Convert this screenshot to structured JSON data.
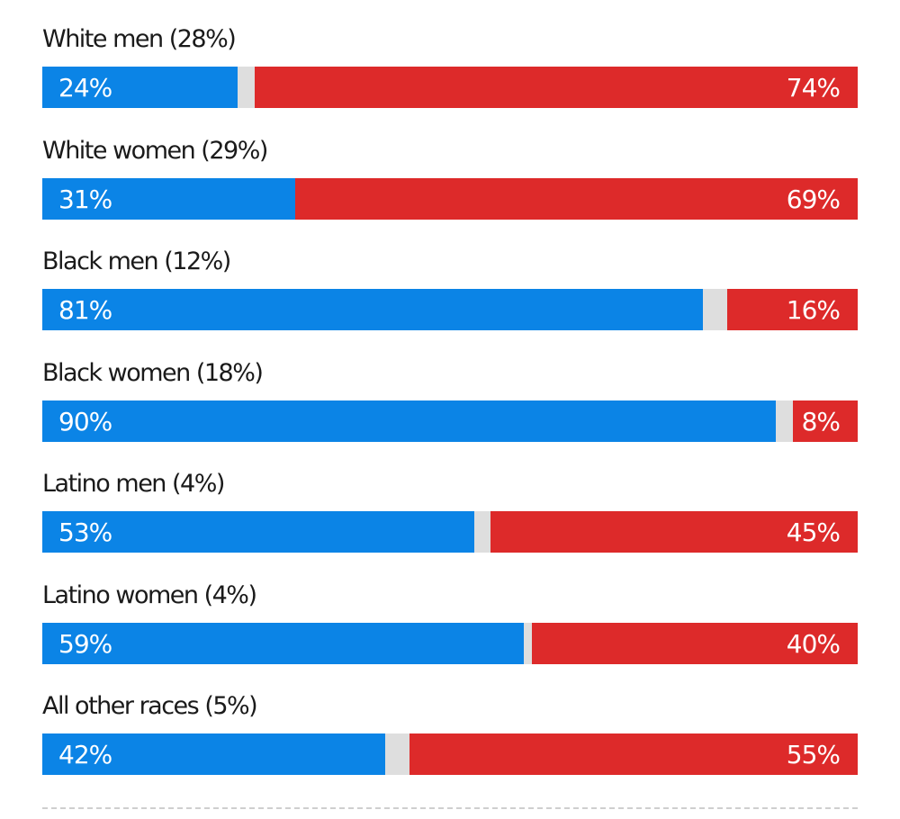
{
  "chart_data": {
    "type": "bar",
    "orientation": "horizontal",
    "stacked": true,
    "categories": [
      "White men (28%)",
      "White women (29%)",
      "Black men (12%)",
      "Black women (18%)",
      "Latino men (4%)",
      "Latino women (4%)",
      "All other races (5%)"
    ],
    "series": [
      {
        "color": "#0b84e6",
        "values": [
          24,
          31,
          81,
          90,
          53,
          59,
          42
        ],
        "labels": [
          "24%",
          "31%",
          "81%",
          "90%",
          "53%",
          "59%",
          "42%"
        ]
      },
      {
        "color": "#dedede",
        "values": [
          2,
          0,
          3,
          2,
          2,
          1,
          3
        ]
      },
      {
        "color": "#dd2a2a",
        "values": [
          74,
          69,
          16,
          8,
          45,
          40,
          55
        ],
        "labels": [
          "74%",
          "69%",
          "16%",
          "8%",
          "45%",
          "40%",
          "55%"
        ]
      }
    ],
    "xlim": [
      0,
      100
    ],
    "grid": false,
    "legend": "none"
  }
}
